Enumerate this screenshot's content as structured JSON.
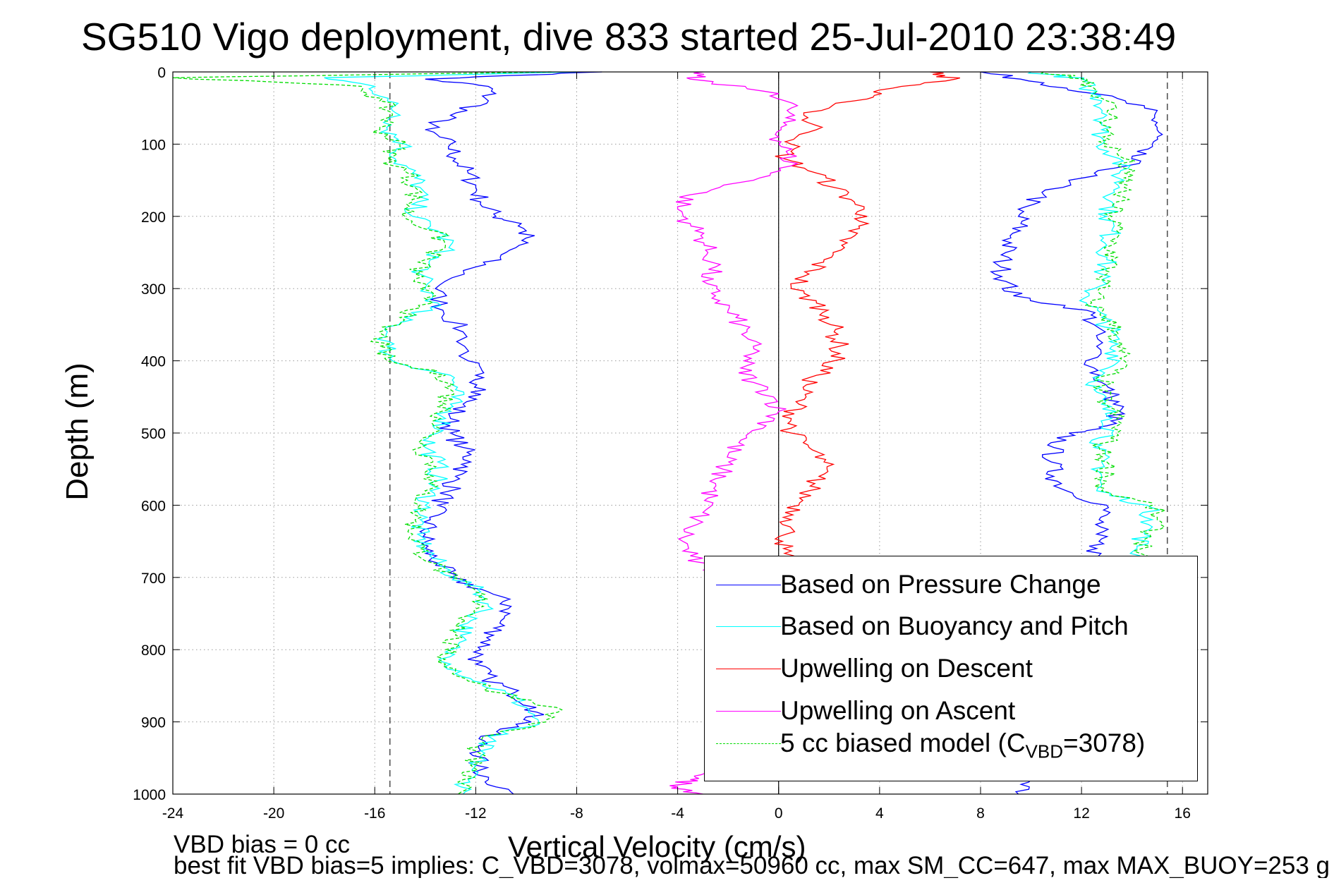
{
  "chart_data": {
    "type": "line",
    "title": "SG510 Vigo deployment, dive 833 started 25-Jul-2010 23:38:49",
    "xlabel": "Vertical Velocity (cm/s)",
    "ylabel": "Depth (m)",
    "xlim": [
      -24,
      17
    ],
    "ylim": [
      0,
      1000
    ],
    "y_reversed": true,
    "grid": true,
    "xticks": [
      -24,
      -20,
      -16,
      -12,
      -8,
      -4,
      0,
      4,
      8,
      12,
      16
    ],
    "yticks": [
      0,
      100,
      200,
      300,
      400,
      500,
      600,
      700,
      800,
      900,
      1000
    ],
    "reference_lines_x": [
      -15.4,
      15.4
    ],
    "zero_line_x": 0,
    "legend_position": "bottom-right",
    "series": [
      {
        "name": "Based on Pressure Change",
        "color": "#0000ff",
        "segments": [
          {
            "depth": [
              0,
              10,
              20,
              40,
              60,
              80,
              100,
              120,
              140,
              160,
              180,
              200,
              210,
              230,
              250,
              270,
              300,
              330,
              360,
              400,
              420,
              440,
              460,
              480,
              500,
              520,
              540,
              560,
              580,
              600,
              620,
              640,
              660,
              680,
              700,
              720,
              740,
              760,
              780,
              800,
              820,
              840,
              860,
              880,
              900,
              920,
              940,
              960,
              980,
              1000
            ],
            "velocity": [
              -7,
              -14,
              -11.5,
              -11.5,
              -13,
              -14,
              -13,
              -12.8,
              -12.3,
              -12,
              -11.8,
              -11.2,
              -10.2,
              -10,
              -10.8,
              -12,
              -13.6,
              -13.3,
              -12.5,
              -12.3,
              -12,
              -11.6,
              -12.5,
              -13,
              -13,
              -12.5,
              -12.2,
              -12.8,
              -13,
              -13.5,
              -13.8,
              -14,
              -14,
              -13.5,
              -13,
              -11.5,
              -10.6,
              -11,
              -11.3,
              -11.8,
              -12,
              -11.5,
              -10.5,
              -9.6,
              -9.8,
              -11.8,
              -11.8,
              -12,
              -11.5,
              -10.5
            ]
          },
          {
            "depth": [
              0,
              15,
              30,
              50,
              70,
              90,
              110,
              130,
              150,
              170,
              190,
              210,
              230,
              250,
              270,
              290,
              310,
              330,
              350,
              380,
              410,
              430,
              450,
              470,
              490,
              500,
              520,
              540,
              560,
              580,
              600,
              620,
              640,
              660,
              680,
              700,
              720,
              740,
              760,
              780,
              800,
              820,
              840,
              860,
              880,
              900,
              920,
              940,
              960,
              980,
              1000
            ],
            "velocity": [
              8,
              10.5,
              12.5,
              14.5,
              15,
              15,
              14.2,
              13.8,
              11.5,
              10.5,
              9.5,
              9.6,
              9.2,
              9,
              8.8,
              9,
              9.3,
              12.2,
              12.5,
              12.6,
              12.5,
              12.8,
              13.2,
              13.5,
              13,
              11.5,
              10.9,
              10.8,
              10.9,
              11.4,
              13,
              12.7,
              12.6,
              12.6,
              12.5,
              12.4,
              12.2,
              12.2,
              12.3,
              12.5,
              12.5,
              12.4,
              12.3,
              12.2,
              12,
              11.5,
              11,
              11,
              10.5,
              10,
              9.5
            ]
          }
        ]
      },
      {
        "name": "Based on Buoyancy and Pitch",
        "color": "#00ffff",
        "segments": [
          {
            "depth": [
              0,
              8,
              20,
              40,
              60,
              80,
              100,
              120,
              140,
              160,
              180,
              200,
              220,
              240,
              260,
              280,
              300,
              320,
              340,
              360,
              380,
              400,
              420,
              440,
              460,
              480,
              500,
              520,
              540,
              560,
              580,
              600,
              620,
              640,
              660,
              680,
              700,
              720,
              740,
              760,
              780,
              800,
              820,
              840,
              860,
              880,
              900,
              920,
              940,
              960,
              980,
              1000
            ],
            "velocity": [
              -8,
              -18,
              -16,
              -15.5,
              -15,
              -15.5,
              -14.8,
              -15.2,
              -14.5,
              -14.2,
              -14.3,
              -14.5,
              -13.5,
              -13,
              -13.8,
              -14.2,
              -14,
              -13.5,
              -14.8,
              -15.5,
              -15.5,
              -15.3,
              -13,
              -12.8,
              -13,
              -13.2,
              -13.5,
              -14,
              -13.5,
              -13.5,
              -13.8,
              -14,
              -14.2,
              -14.3,
              -14,
              -13.5,
              -12.8,
              -11.8,
              -11.5,
              -12.2,
              -12.6,
              -13,
              -13,
              -12.2,
              -10.8,
              -10,
              -9.5,
              -11.5,
              -11.8,
              -12,
              -12.3,
              -12.5
            ]
          },
          {
            "depth": [
              0,
              10,
              20,
              40,
              60,
              80,
              100,
              120,
              140,
              160,
              180,
              200,
              220,
              240,
              260,
              280,
              300,
              320,
              340,
              360,
              380,
              400,
              420,
              440,
              460,
              480,
              500,
              520,
              540,
              560,
              580,
              600,
              620,
              640,
              660,
              680,
              700
            ],
            "velocity": [
              10,
              12,
              12.2,
              12.8,
              13,
              12.8,
              12.8,
              13.5,
              13.5,
              13.5,
              13.2,
              13,
              13.2,
              13,
              13,
              12.8,
              12.5,
              12.2,
              12.8,
              13.2,
              13.2,
              13.5,
              12.8,
              12.5,
              12.8,
              13.2,
              13.2,
              12.5,
              12.8,
              12.8,
              12.6,
              14.6,
              14.8,
              14.5,
              14.2,
              14.2,
              14
            ]
          }
        ]
      },
      {
        "name": "Upwelling on Descent",
        "color": "#ff0000",
        "segments": [
          {
            "depth": [
              0,
              10,
              25,
              40,
              60,
              80,
              100,
              120,
              140,
              160,
              180,
              200,
              220,
              240,
              260,
              280,
              300,
              320,
              340,
              360,
              380,
              400,
              420,
              440,
              460,
              480,
              500,
              520,
              540,
              560,
              580,
              600,
              620,
              640,
              660,
              680
            ],
            "velocity": [
              6,
              7,
              4,
              3,
              1,
              1.5,
              0.5,
              0.2,
              1.5,
              2.2,
              3,
              3.5,
              2.8,
              2.5,
              1.8,
              1.2,
              0.5,
              1.5,
              2,
              2.2,
              2.4,
              2.2,
              1.5,
              1,
              0.8,
              0.5,
              0.5,
              1.2,
              1.8,
              1.6,
              1.2,
              0.8,
              0.5,
              0.3,
              0.2,
              0.2
            ]
          }
        ]
      },
      {
        "name": "Upwelling on Ascent",
        "color": "#ff00ff",
        "segments": [
          {
            "depth": [
              0,
              10,
              30,
              50,
              70,
              90,
              110,
              130,
              150,
              170,
              190,
              210,
              230,
              250,
              270,
              290,
              310,
              330,
              350,
              370,
              390,
              410,
              430,
              450,
              470,
              490,
              510,
              530,
              550,
              570,
              590,
              610,
              630,
              650,
              670,
              690
            ],
            "velocity": [
              -3,
              -3.5,
              0,
              0.5,
              0.2,
              0,
              0.3,
              0.5,
              -1,
              -3.5,
              -4,
              -3.5,
              -3,
              -2.8,
              -2.5,
              -3,
              -2.5,
              -2,
              -1.5,
              -1.2,
              -1,
              -1.5,
              -1,
              -0.2,
              0,
              -0.5,
              -1.5,
              -2,
              -2.2,
              -2.5,
              -2.8,
              -3,
              -3.5,
              -3.8,
              -3.5,
              -3
            ]
          },
          {
            "depth": [
              970,
              980,
              990,
              1000
            ],
            "velocity": [
              -2.5,
              -3.5,
              -4,
              -3
            ]
          }
        ]
      },
      {
        "name": "5 cc biased model (C_VBD=3078)",
        "legend_label_main": "5 cc biased model (C",
        "legend_label_sub": "VBD",
        "legend_label_end": "=3078)",
        "color": "#00dd00",
        "dashed": true,
        "segments": [
          {
            "depth": [
              0,
              8,
              20,
              40,
              60,
              80,
              100,
              120,
              140,
              160,
              180,
              200,
              220,
              240,
              260,
              280,
              300,
              320,
              340,
              360,
              380,
              400,
              420,
              440,
              460,
              480,
              500,
              520,
              540,
              560,
              580,
              600,
              620,
              640,
              660,
              680,
              700,
              720,
              740,
              760,
              780,
              800,
              820,
              840,
              860,
              880,
              900,
              920,
              940,
              960,
              980,
              1000
            ],
            "velocity": [
              -9,
              -24,
              -16.5,
              -15.8,
              -15.3,
              -15.8,
              -15,
              -15.5,
              -14.7,
              -14.4,
              -14.5,
              -14.8,
              -13.7,
              -13.2,
              -14,
              -14.4,
              -14.2,
              -13.7,
              -15,
              -15.8,
              -15.8,
              -15.5,
              -13.2,
              -13,
              -13.2,
              -13.4,
              -13.7,
              -14.2,
              -13.7,
              -13.7,
              -14,
              -14.2,
              -14.4,
              -14.5,
              -14.2,
              -13.7,
              -13,
              -12,
              -11.7,
              -12.4,
              -12.8,
              -13.2,
              -13.2,
              -12.4,
              -11,
              -8.8,
              -9.2,
              -11.7,
              -12,
              -12.2,
              -12.5,
              -12.7
            ]
          },
          {
            "depth": [
              0,
              10,
              20,
              40,
              60,
              80,
              100,
              120,
              140,
              160,
              180,
              200,
              220,
              240,
              260,
              280,
              300,
              320,
              340,
              360,
              380,
              400,
              420,
              440,
              460,
              480,
              500,
              520,
              540,
              560,
              580,
              600,
              620,
              640,
              660,
              680,
              700
            ],
            "velocity": [
              10.5,
              12.2,
              12.4,
              13,
              13.2,
              13,
              13,
              13.7,
              13.7,
              13.7,
              13.4,
              13.2,
              13.4,
              13.2,
              13.2,
              13,
              12.7,
              12.4,
              13,
              13.4,
              13.4,
              13.7,
              13,
              12.7,
              13,
              13.4,
              13.4,
              12.7,
              13,
              13,
              12.8,
              14.8,
              15,
              14.7,
              14.4,
              14.4,
              14.2
            ]
          }
        ]
      }
    ]
  },
  "annotations": {
    "vbd_bias": "VBD bias = 0 cc",
    "best_fit": "best fit VBD bias=5 implies: C_VBD=3078, volmax=50960 cc, max SM_CC=647, max MAX_BUOY=253 g"
  }
}
